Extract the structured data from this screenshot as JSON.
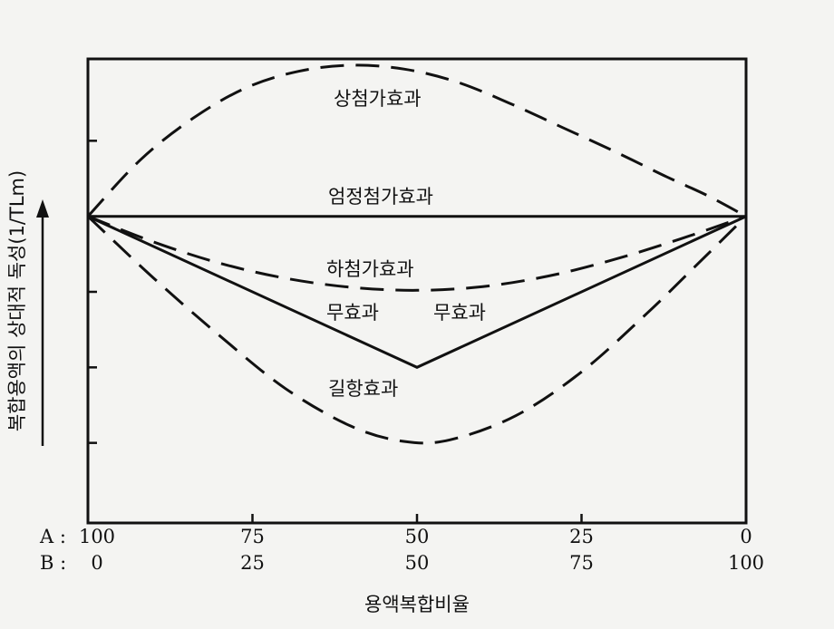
{
  "chart_data": {
    "type": "line",
    "xlabel": "용액복합비율",
    "ylabel": "복합용액의 상대적 독성(1/TLm)",
    "x_tick_rows": [
      {
        "name": "A",
        "labels": [
          "100",
          "75",
          "50",
          "25",
          "0"
        ]
      },
      {
        "name": "B",
        "labels": [
          "0",
          "25",
          "50",
          "75",
          "100"
        ]
      }
    ],
    "x_ticks": [
      0,
      25,
      50,
      75,
      100
    ],
    "xlim": [
      0,
      100
    ],
    "ylim": [
      0,
      6
    ],
    "y_ticks": [
      1,
      2,
      3,
      4,
      5
    ],
    "y_tick_labels": [
      "",
      "",
      "",
      "",
      ""
    ],
    "grid": false,
    "series": [
      {
        "name": "상첨가효과",
        "style": "dashed",
        "points": [
          [
            0,
            4
          ],
          [
            8,
            4.75
          ],
          [
            16,
            5.3
          ],
          [
            24,
            5.7
          ],
          [
            32,
            5.92
          ],
          [
            40,
            6.0
          ],
          [
            48,
            5.95
          ],
          [
            56,
            5.78
          ],
          [
            64,
            5.5
          ],
          [
            72,
            5.18
          ],
          [
            80,
            4.86
          ],
          [
            88,
            4.52
          ],
          [
            94,
            4.28
          ],
          [
            100,
            4
          ]
        ]
      },
      {
        "name": "엄정첨가효과",
        "style": "solid",
        "points": [
          [
            0,
            4
          ],
          [
            100,
            4
          ]
        ]
      },
      {
        "name": "하첨가효과",
        "style": "dashed",
        "points": [
          [
            0,
            4
          ],
          [
            10,
            3.66
          ],
          [
            20,
            3.38
          ],
          [
            30,
            3.18
          ],
          [
            40,
            3.06
          ],
          [
            50,
            3.02
          ],
          [
            60,
            3.07
          ],
          [
            70,
            3.21
          ],
          [
            80,
            3.43
          ],
          [
            90,
            3.7
          ],
          [
            100,
            4
          ]
        ]
      },
      {
        "name": "무효과",
        "style": "solid",
        "points": [
          [
            0,
            4
          ],
          [
            50,
            2.0
          ],
          [
            100,
            4
          ]
        ]
      },
      {
        "name": "길항효과",
        "style": "dashed",
        "points": [
          [
            0,
            4
          ],
          [
            10,
            3.18
          ],
          [
            20,
            2.42
          ],
          [
            30,
            1.72
          ],
          [
            40,
            1.22
          ],
          [
            48,
            1.02
          ],
          [
            55,
            1.04
          ],
          [
            65,
            1.36
          ],
          [
            75,
            1.94
          ],
          [
            85,
            2.72
          ],
          [
            93,
            3.4
          ],
          [
            100,
            4
          ]
        ]
      }
    ],
    "annotations": [
      "상첨가효과",
      "엄정첨가효과",
      "하첨가효과",
      "무효과",
      "무효과",
      "길항효과"
    ],
    "axis_prefixes": {
      "A": "A :",
      "B": "B :"
    }
  }
}
